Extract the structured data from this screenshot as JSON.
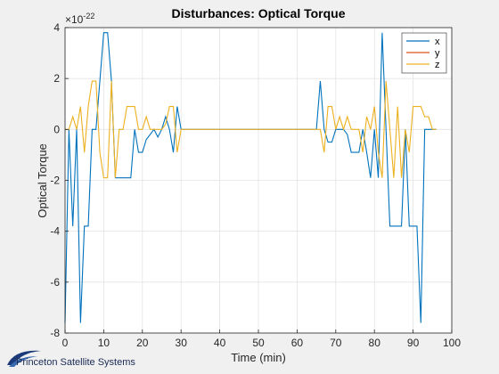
{
  "chart_data": {
    "type": "line",
    "title": "Disturbances: Optical Torque",
    "xlabel": "Time (min)",
    "ylabel": "Optical Torque",
    "exponent_label": "×10",
    "exponent_power": "-22",
    "xlim": [
      0,
      100
    ],
    "ylim": [
      -8,
      4
    ],
    "xticks": [
      "0",
      "10",
      "20",
      "30",
      "40",
      "50",
      "60",
      "70",
      "80",
      "90",
      "100"
    ],
    "yticks": [
      "-8",
      "-6",
      "-4",
      "-2",
      "0",
      "2",
      "4"
    ],
    "grid": true,
    "legend_position": "top-right",
    "series": [
      {
        "name": "x",
        "color": "#0072BD",
        "points": [
          [
            0,
            -7.6
          ],
          [
            1,
            0
          ],
          [
            2,
            -3.8
          ],
          [
            3,
            0
          ],
          [
            4,
            -7.6
          ],
          [
            5,
            -3.8
          ],
          [
            6,
            -3.8
          ],
          [
            7,
            0
          ],
          [
            8,
            0
          ],
          [
            9,
            1.9
          ],
          [
            10,
            3.8
          ],
          [
            11,
            3.8
          ],
          [
            12,
            1.9
          ],
          [
            13,
            -1.9
          ],
          [
            14,
            -1.9
          ],
          [
            15,
            -1.9
          ],
          [
            16,
            -1.9
          ],
          [
            17,
            -1.9
          ],
          [
            18,
            0
          ],
          [
            19,
            -0.9
          ],
          [
            20,
            -0.9
          ],
          [
            21,
            -0.4
          ],
          [
            22,
            -0.2
          ],
          [
            23,
            0
          ],
          [
            24,
            -0.3
          ],
          [
            25,
            0
          ],
          [
            26,
            0.5
          ],
          [
            27,
            0
          ],
          [
            28,
            -0.9
          ],
          [
            29,
            0.9
          ],
          [
            30,
            0
          ],
          [
            31,
            0
          ],
          [
            65,
            0
          ],
          [
            66,
            1.9
          ],
          [
            67,
            0
          ],
          [
            68,
            -0.5
          ],
          [
            69,
            -0.5
          ],
          [
            70,
            0
          ],
          [
            71,
            0
          ],
          [
            72,
            0
          ],
          [
            73,
            -0.2
          ],
          [
            74,
            -0.9
          ],
          [
            75,
            -0.9
          ],
          [
            76,
            -0.9
          ],
          [
            77,
            0
          ],
          [
            78,
            -0.9
          ],
          [
            79,
            -1.9
          ],
          [
            80,
            0
          ],
          [
            81,
            -1.9
          ],
          [
            82,
            3.8
          ],
          [
            83,
            0
          ],
          [
            84,
            -3.8
          ],
          [
            85,
            -3.8
          ],
          [
            86,
            -3.8
          ],
          [
            87,
            -3.8
          ],
          [
            88,
            0
          ],
          [
            89,
            -3.8
          ],
          [
            90,
            -3.8
          ],
          [
            91,
            -3.8
          ],
          [
            92,
            -7.6
          ],
          [
            93,
            0
          ],
          [
            94,
            0
          ],
          [
            95,
            0
          ],
          [
            96,
            0
          ]
        ]
      },
      {
        "name": "y",
        "color": "#D95319",
        "points": [
          [
            0,
            0
          ],
          [
            96,
            0
          ]
        ]
      },
      {
        "name": "z",
        "color": "#EDB120",
        "points": [
          [
            0,
            0
          ],
          [
            1,
            0
          ],
          [
            2,
            0.5
          ],
          [
            3,
            0
          ],
          [
            4,
            0.9
          ],
          [
            5,
            -0.9
          ],
          [
            6,
            0.9
          ],
          [
            7,
            1.9
          ],
          [
            8,
            1.9
          ],
          [
            9,
            -0.9
          ],
          [
            10,
            -1.9
          ],
          [
            11,
            -1.9
          ],
          [
            12,
            1.9
          ],
          [
            13,
            -1.9
          ],
          [
            14,
            0
          ],
          [
            15,
            0
          ],
          [
            16,
            0.9
          ],
          [
            17,
            0.9
          ],
          [
            18,
            0.9
          ],
          [
            19,
            0
          ],
          [
            20,
            0
          ],
          [
            21,
            0.5
          ],
          [
            22,
            0
          ],
          [
            23,
            0
          ],
          [
            24,
            0
          ],
          [
            25,
            0
          ],
          [
            26,
            0.2
          ],
          [
            27,
            0.9
          ],
          [
            28,
            0.9
          ],
          [
            29,
            -0.9
          ],
          [
            30,
            0
          ],
          [
            31,
            0
          ],
          [
            65,
            0
          ],
          [
            66,
            0
          ],
          [
            67,
            -0.9
          ],
          [
            68,
            0.9
          ],
          [
            69,
            0.9
          ],
          [
            70,
            0
          ],
          [
            71,
            0.5
          ],
          [
            72,
            0
          ],
          [
            73,
            0.5
          ],
          [
            74,
            0
          ],
          [
            75,
            0
          ],
          [
            76,
            0
          ],
          [
            77,
            -0.9
          ],
          [
            78,
            0.5
          ],
          [
            79,
            0
          ],
          [
            80,
            0.9
          ],
          [
            81,
            -0.9
          ],
          [
            82,
            -1.9
          ],
          [
            83,
            1.9
          ],
          [
            84,
            0
          ],
          [
            85,
            -1.9
          ],
          [
            86,
            0.9
          ],
          [
            87,
            -1.9
          ],
          [
            88,
            0
          ],
          [
            89,
            -0.9
          ],
          [
            90,
            0.9
          ],
          [
            91,
            0.9
          ],
          [
            92,
            0.9
          ],
          [
            93,
            0.5
          ],
          [
            94,
            0.5
          ],
          [
            95,
            0
          ],
          [
            96,
            0
          ]
        ]
      }
    ]
  },
  "logo": {
    "text": "Princeton Satellite Systems"
  }
}
